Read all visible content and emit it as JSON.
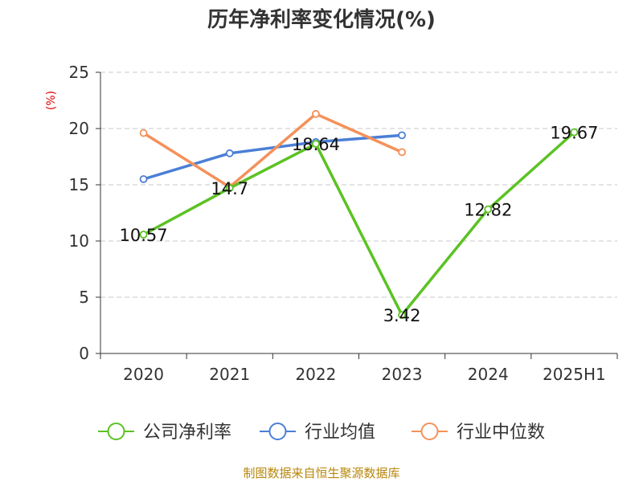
{
  "page": {
    "title": "历年净利率变化情况(%)",
    "source": "制图数据来自恒生聚源数据库"
  },
  "chart_data": {
    "type": "line",
    "title": "历年净利率变化情况(%)",
    "ylabel": "(%)",
    "xlabel": "",
    "categories": [
      "2020",
      "2021",
      "2022",
      "2023",
      "2024",
      "2025H1"
    ],
    "ylim": [
      0,
      25
    ],
    "yticks": [
      0,
      5,
      10,
      15,
      20,
      25
    ],
    "grid": true,
    "legend_position": "bottom",
    "series": [
      {
        "name": "公司净利率",
        "color": "#5bc223",
        "values": [
          10.57,
          14.7,
          18.64,
          3.42,
          12.82,
          19.67
        ],
        "labels": [
          "10.57",
          "14.7",
          "18.64",
          "3.42",
          "12.82",
          "19.67"
        ]
      },
      {
        "name": "行业均值",
        "color": "#4a7fd6",
        "values": [
          15.5,
          17.8,
          18.8,
          19.4,
          null,
          null
        ]
      },
      {
        "name": "行业中位数",
        "color": "#f4915a",
        "values": [
          19.6,
          14.8,
          21.3,
          17.9,
          null,
          null
        ]
      }
    ]
  }
}
